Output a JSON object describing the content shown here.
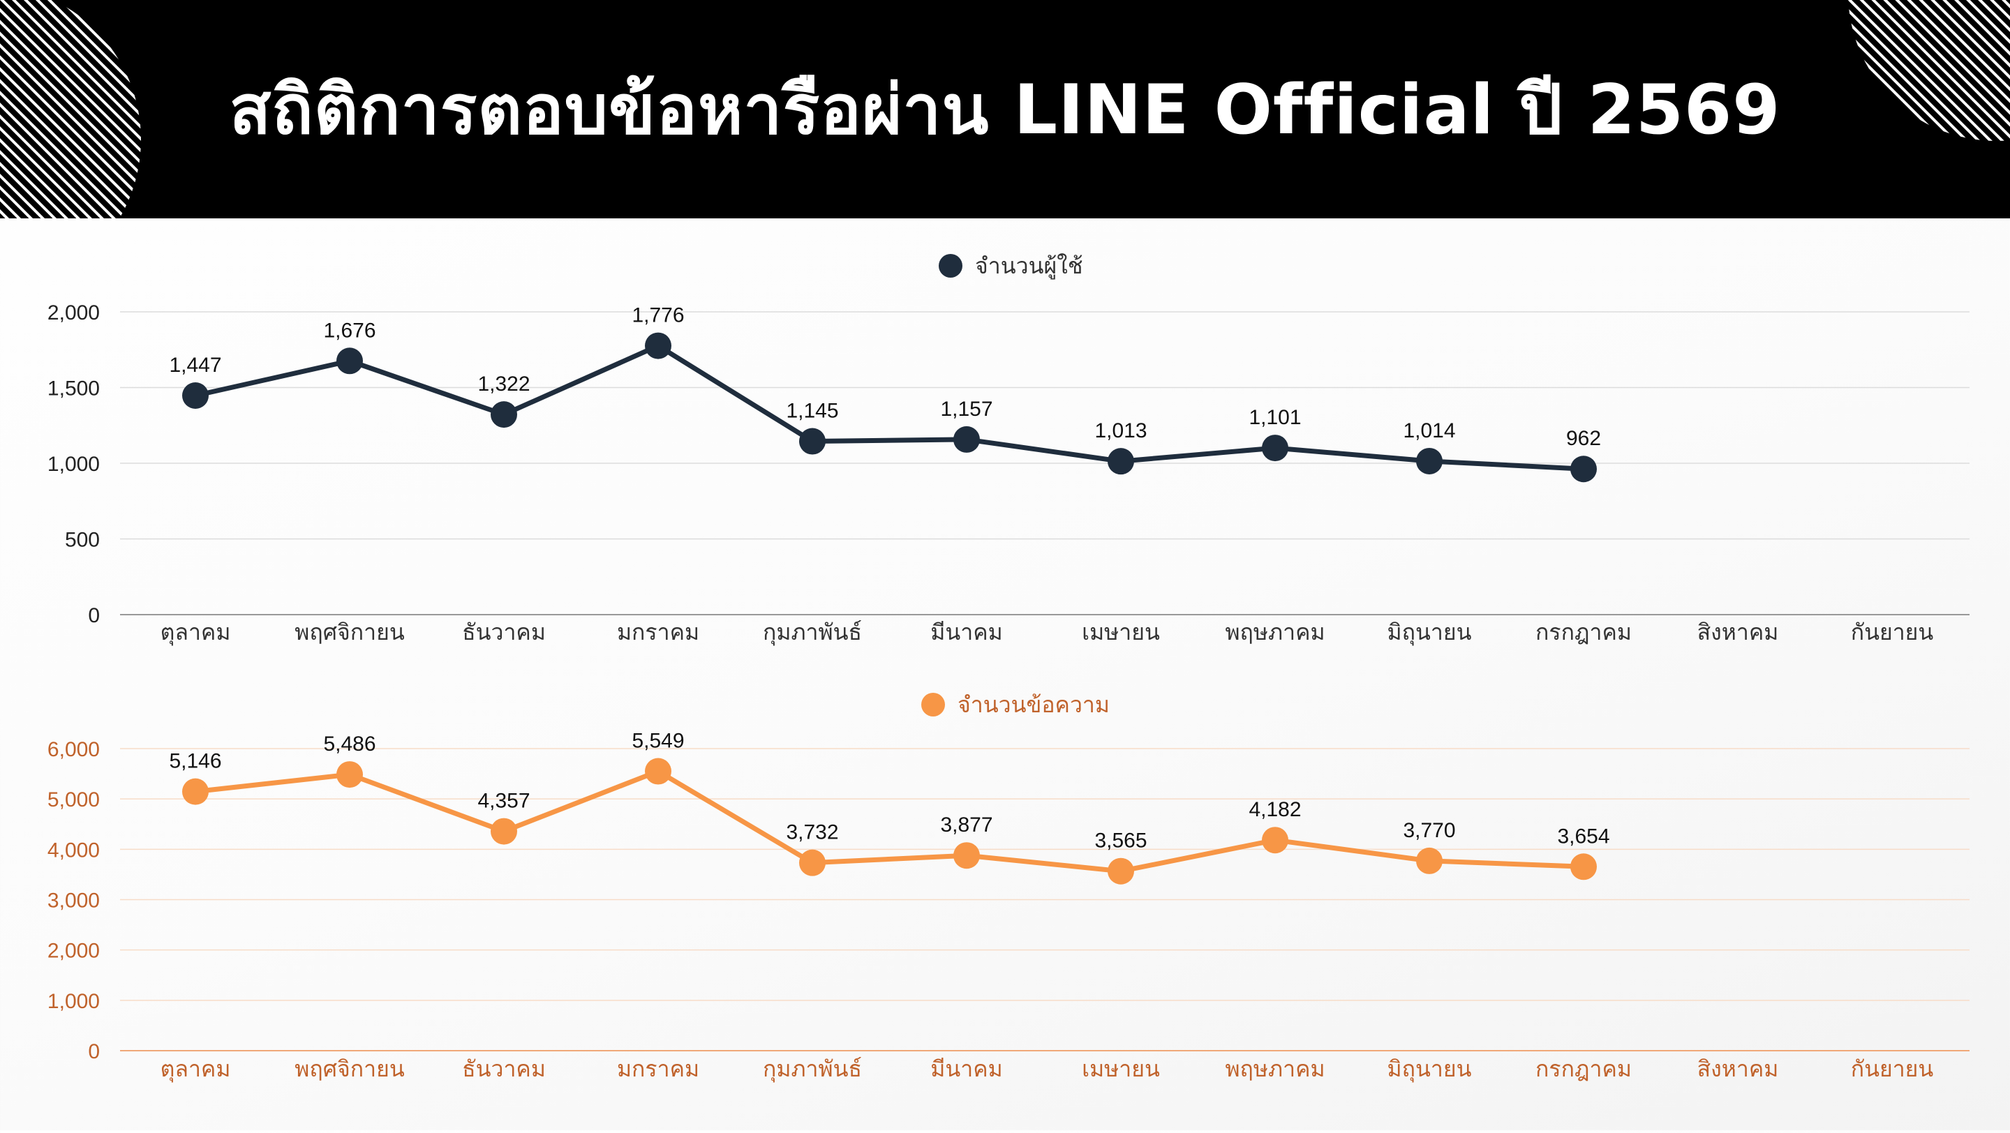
{
  "title": "สถิติการตอบข้อหารือผ่าน LINE Official ปี 2569",
  "colors": {
    "header_bg": "#000000",
    "title_text": "#ffffff",
    "users_series": "#1f2d3d",
    "messages_series": "#f79646",
    "messages_axis_text": "#c0622b"
  },
  "chart_data": [
    {
      "type": "line",
      "categories": [
        "ตุลาคม",
        "พฤศจิกายน",
        "ธันวาคม",
        "มกราคม",
        "กุมภาพันธ์",
        "มีนาคม",
        "เมษายน",
        "พฤษภาคม",
        "มิถุนายน",
        "กรกฎาคม",
        "สิงหาคม",
        "กันยายน"
      ],
      "series": [
        {
          "name": "จำนวนผู้ใช้",
          "values": [
            1447,
            1676,
            1322,
            1776,
            1145,
            1157,
            1013,
            1101,
            1014,
            962,
            null,
            null
          ]
        }
      ],
      "data_labels": [
        "1,447",
        "1,676",
        "1,322",
        "1,776",
        "1,145",
        "1,157",
        "1,013",
        "1,101",
        "1,014",
        "962"
      ],
      "yticks": [
        "0",
        "500",
        "1,000",
        "1,500",
        "2,000"
      ],
      "ylim": [
        0,
        2000
      ],
      "legend": "top-center",
      "grid": true
    },
    {
      "type": "line",
      "categories": [
        "ตุลาคม",
        "พฤศจิกายน",
        "ธันวาคม",
        "มกราคม",
        "กุมภาพันธ์",
        "มีนาคม",
        "เมษายน",
        "พฤษภาคม",
        "มิถุนายน",
        "กรกฎาคม",
        "สิงหาคม",
        "กันยายน"
      ],
      "series": [
        {
          "name": "จำนวนข้อความ",
          "values": [
            5146,
            5486,
            4357,
            5549,
            3732,
            3877,
            3565,
            4182,
            3770,
            3654,
            null,
            null
          ]
        }
      ],
      "data_labels": [
        "5,146",
        "5,486",
        "4,357",
        "5,549",
        "3,732",
        "3,877",
        "3,565",
        "4,182",
        "3,770",
        "3,654"
      ],
      "yticks": [
        "0",
        "1,000",
        "2,000",
        "3,000",
        "4,000",
        "5,000",
        "6,000"
      ],
      "ylim": [
        0,
        6000
      ],
      "legend": "top-center",
      "grid": true
    }
  ]
}
